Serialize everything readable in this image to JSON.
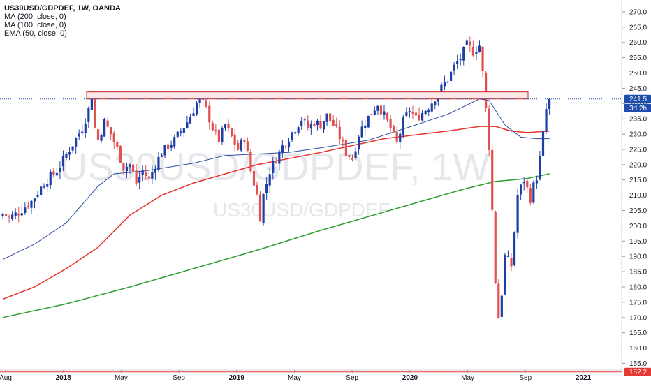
{
  "legend": {
    "title": "US30USD/GDPDEF, 1W, OANDA",
    "line1": "MA (200, close, 0)",
    "line2": "MA (100, close, 0)",
    "line3": "EMA (50, close, 0)"
  },
  "watermark": {
    "big": "US30USD/GDPDEF, 1W",
    "small": "US30USD/GDPDEF"
  },
  "colors": {
    "up": "#1e3fa8",
    "down": "#e05050",
    "ma200": "#2ea02e",
    "ma100": "#e8322a",
    "ema50": "#2a4fa0",
    "price_label_bg": "#1f4dab",
    "low_label_bg": "#e53935",
    "resistance_fill": "#fde8e8",
    "resistance_stroke": "#cc2222"
  },
  "price_tags": {
    "last_price": "241.5",
    "countdown": "3d 2h",
    "low_level": "152.2"
  },
  "chart_data": {
    "type": "candlestick",
    "x_tick_labels": [
      "Aug",
      "2018",
      "May",
      "Sep",
      "2019",
      "May",
      "Sep",
      "2020",
      "May",
      "Sep",
      "2021"
    ],
    "y_ticks": [
      "155.0",
      "160.0",
      "165.0",
      "170.0",
      "175.0",
      "180.0",
      "185.0",
      "190.0",
      "195.0",
      "200.0",
      "205.0",
      "210.0",
      "215.0",
      "220.0",
      "225.0",
      "230.0",
      "235.0",
      "240.0",
      "245.0",
      "250.0",
      "255.0",
      "260.0",
      "265.0",
      "270.0"
    ],
    "ylim": [
      153.5,
      272.5
    ],
    "last_price": 241.5,
    "horizontal_line": 152.2,
    "resistance_zone": [
      241.5,
      243.8
    ],
    "grid": false,
    "close_trend": [
      [
        0,
        204.0
      ],
      [
        2,
        202.5
      ],
      [
        5,
        204.5
      ],
      [
        9,
        208.0
      ],
      [
        13,
        214.0
      ],
      [
        17,
        218.0
      ],
      [
        21,
        225.0
      ],
      [
        25,
        232.0
      ],
      [
        27,
        238.0
      ],
      [
        28,
        242.5
      ],
      [
        29,
        232.0
      ],
      [
        30,
        228.0
      ],
      [
        32,
        234.0
      ],
      [
        34,
        230.0
      ],
      [
        36,
        225.0
      ],
      [
        38,
        219.0
      ],
      [
        40,
        220.0
      ],
      [
        42,
        214.0
      ],
      [
        44,
        218.0
      ],
      [
        46,
        215.0
      ],
      [
        48,
        220.0
      ],
      [
        50,
        224.0
      ],
      [
        52,
        226.0
      ],
      [
        54,
        228.0
      ],
      [
        56,
        231.0
      ],
      [
        58,
        234.0
      ],
      [
        60,
        238.0
      ],
      [
        62,
        242.0
      ],
      [
        64,
        238.0
      ],
      [
        66,
        232.0
      ],
      [
        68,
        228.0
      ],
      [
        70,
        233.0
      ],
      [
        72,
        229.0
      ],
      [
        74,
        225.0
      ],
      [
        76,
        229.0
      ],
      [
        78,
        218.0
      ],
      [
        80,
        210.0
      ],
      [
        81,
        203.0
      ],
      [
        82,
        210.0
      ],
      [
        84,
        218.0
      ],
      [
        86,
        222.0
      ],
      [
        88,
        226.0
      ],
      [
        90,
        229.0
      ],
      [
        92,
        232.0
      ],
      [
        94,
        235.0
      ],
      [
        96,
        232.0
      ],
      [
        98,
        234.0
      ],
      [
        100,
        233.0
      ],
      [
        102,
        236.0
      ],
      [
        104,
        233.0
      ],
      [
        106,
        229.0
      ],
      [
        108,
        224.0
      ],
      [
        110,
        222.0
      ],
      [
        112,
        230.0
      ],
      [
        114,
        234.0
      ],
      [
        116,
        237.0
      ],
      [
        118,
        240.0
      ],
      [
        120,
        236.0
      ],
      [
        122,
        232.0
      ],
      [
        124,
        227.0
      ],
      [
        126,
        234.0
      ],
      [
        128,
        238.0
      ],
      [
        130,
        235.0
      ],
      [
        132,
        237.0
      ],
      [
        134,
        239.0
      ],
      [
        136,
        242.0
      ],
      [
        138,
        245.0
      ],
      [
        140,
        248.0
      ],
      [
        142,
        252.0
      ],
      [
        144,
        255.0
      ],
      [
        146,
        259.0
      ],
      [
        148,
        257.0
      ],
      [
        150,
        259.0
      ],
      [
        151,
        250.0
      ],
      [
        152,
        238.0
      ],
      [
        153,
        226.0
      ],
      [
        154,
        205.0
      ],
      [
        155,
        182.0
      ],
      [
        156,
        170.0
      ],
      [
        157,
        178.0
      ],
      [
        158,
        190.0
      ],
      [
        160,
        187.0
      ],
      [
        161,
        198.0
      ],
      [
        162,
        210.0
      ],
      [
        164,
        215.0
      ],
      [
        166,
        209.0
      ],
      [
        167,
        213.0
      ],
      [
        168,
        216.0
      ],
      [
        169,
        222.0
      ],
      [
        170,
        230.0
      ],
      [
        171,
        238.0
      ],
      [
        172,
        241.5
      ]
    ],
    "series": [
      {
        "name": "MA (200, close, 0)",
        "values": [
          [
            0,
            170.0
          ],
          [
            20,
            174.5
          ],
          [
            40,
            180.0
          ],
          [
            60,
            186.0
          ],
          [
            80,
            192.0
          ],
          [
            100,
            198.5
          ],
          [
            120,
            204.5
          ],
          [
            135,
            209.0
          ],
          [
            145,
            212.0
          ],
          [
            155,
            214.5
          ],
          [
            165,
            215.5
          ],
          [
            172,
            217.0
          ]
        ]
      },
      {
        "name": "MA (100, close, 0)",
        "values": [
          [
            0,
            176.0
          ],
          [
            10,
            180.0
          ],
          [
            20,
            186.0
          ],
          [
            30,
            193.0
          ],
          [
            40,
            203.5
          ],
          [
            50,
            210.0
          ],
          [
            60,
            214.0
          ],
          [
            80,
            220.0
          ],
          [
            100,
            224.0
          ],
          [
            120,
            228.5
          ],
          [
            140,
            231.0
          ],
          [
            150,
            232.5
          ],
          [
            155,
            232.5
          ],
          [
            160,
            231.0
          ],
          [
            165,
            230.5
          ],
          [
            172,
            231.0
          ]
        ]
      },
      {
        "name": "EMA (50, close, 0)",
        "values": [
          [
            0,
            189.0
          ],
          [
            10,
            194.0
          ],
          [
            20,
            201.0
          ],
          [
            30,
            213.0
          ],
          [
            35,
            217.0
          ],
          [
            45,
            218.0
          ],
          [
            60,
            220.5
          ],
          [
            70,
            223.0
          ],
          [
            90,
            224.0
          ],
          [
            100,
            225.5
          ],
          [
            115,
            228.0
          ],
          [
            130,
            233.0
          ],
          [
            140,
            236.5
          ],
          [
            150,
            241.5
          ],
          [
            153,
            241.0
          ],
          [
            158,
            233.0
          ],
          [
            163,
            229.0
          ],
          [
            168,
            228.5
          ],
          [
            172,
            228.5
          ]
        ]
      }
    ]
  }
}
